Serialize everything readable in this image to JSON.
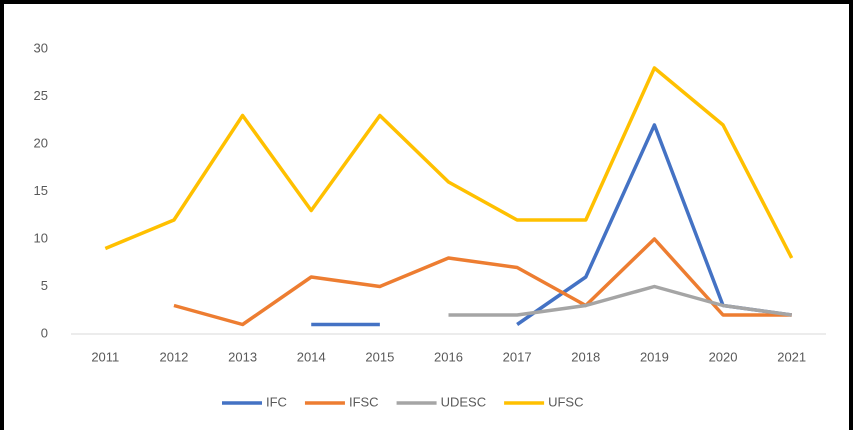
{
  "chart_data": {
    "type": "line",
    "categories": [
      "2011",
      "2012",
      "2013",
      "2014",
      "2015",
      "2016",
      "2017",
      "2018",
      "2019",
      "2020",
      "2021"
    ],
    "series": [
      {
        "name": "IFC",
        "color": "#4472c4",
        "values": [
          null,
          null,
          null,
          1,
          1,
          null,
          1,
          6,
          22,
          3,
          2
        ]
      },
      {
        "name": "IFSC",
        "color": "#ed7d31",
        "values": [
          null,
          3,
          1,
          6,
          5,
          8,
          7,
          3,
          10,
          2,
          2
        ]
      },
      {
        "name": "UDESC",
        "color": "#a5a5a5",
        "values": [
          null,
          null,
          null,
          null,
          null,
          2,
          2,
          3,
          5,
          3,
          2
        ]
      },
      {
        "name": "UFSC",
        "color": "#ffc000",
        "values": [
          9,
          12,
          23,
          13,
          23,
          16,
          12,
          12,
          28,
          22,
          8
        ]
      }
    ],
    "ylim": [
      0,
      30
    ],
    "yticks": [
      0,
      5,
      10,
      15,
      20,
      25,
      30
    ],
    "grid": false,
    "legend": "bottom"
  }
}
